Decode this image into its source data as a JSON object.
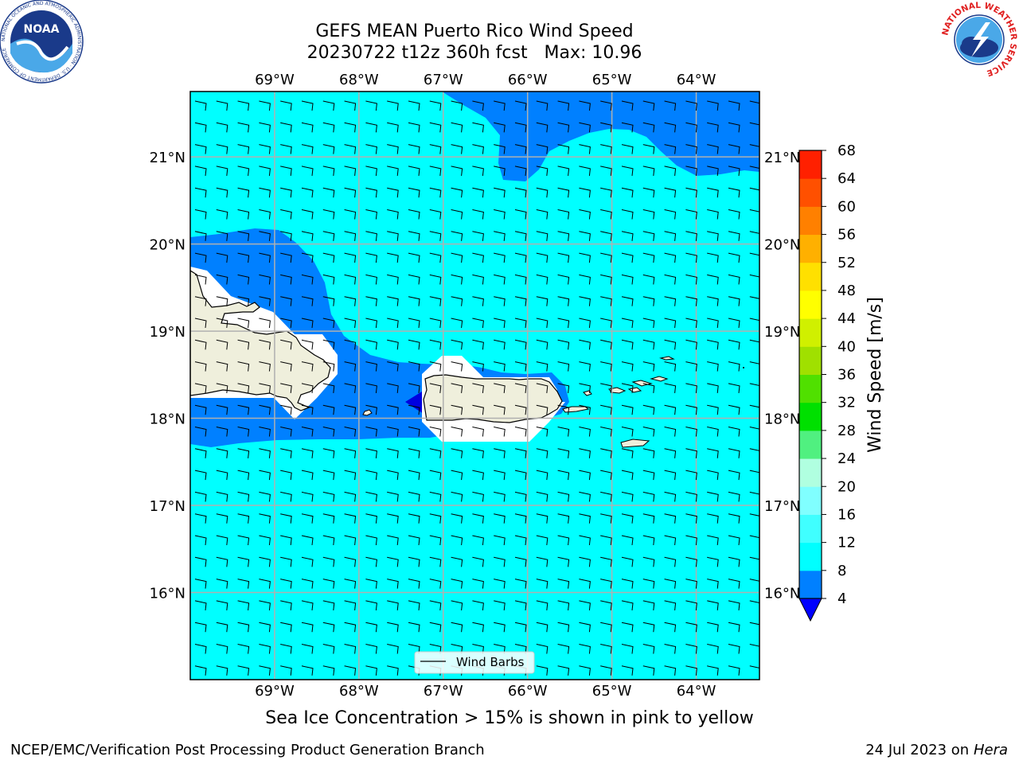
{
  "header": {
    "title_line1": "GEFS MEAN Puerto Rico Wind Speed",
    "title_line2": "20230722 t12z 360h fcst   Max: 10.96"
  },
  "logos": {
    "left": {
      "name": "noaa-logo",
      "text": "NOAA",
      "ring_text": "NATIONAL OCEANIC AND ATMOSPHERIC ADMINISTRATION · U.S. DEPARTMENT OF COMMERCE"
    },
    "right": {
      "name": "nws-logo",
      "ring_text": "NATIONAL WEATHER SERVICE"
    }
  },
  "map": {
    "lon_labels": [
      "69°W",
      "68°W",
      "67°W",
      "66°W",
      "65°W",
      "64°W"
    ],
    "lat_labels": [
      "21°N",
      "20°N",
      "19°N",
      "18°N",
      "17°N",
      "16°N"
    ],
    "lon_range": [
      -70.0,
      -63.25
    ],
    "lat_range": [
      15.0,
      21.75
    ],
    "legend": {
      "label": "Wind Barbs"
    },
    "colors": {
      "ocean_8_12": "#00ffff",
      "band_4_8": "#0080ff",
      "below_4": "#0000e0",
      "land": "#efefdc",
      "gridline": "#b0b0b0"
    }
  },
  "colorbar": {
    "label": "Wind Speed [m/s]",
    "ticks": [
      "4",
      "8",
      "12",
      "16",
      "20",
      "24",
      "28",
      "32",
      "36",
      "40",
      "44",
      "48",
      "52",
      "56",
      "60",
      "64",
      "68"
    ],
    "level_colors": [
      "#0080ff",
      "#00ffff",
      "#40ffff",
      "#80ffff",
      "#b0ffe0",
      "#50f080",
      "#00e000",
      "#50e000",
      "#a0e000",
      "#d0f000",
      "#ffff00",
      "#ffe000",
      "#ffb000",
      "#ff8000",
      "#ff5000",
      "#ff2000"
    ],
    "extend_color": "#0000ff"
  },
  "footer": {
    "subtitle": "Sea Ice Concentration > 15% is shown in pink to yellow",
    "left": "NCEP/EMC/Verification Post Processing Product Generation Branch",
    "date": "24 Jul 2023 on ",
    "machine": "Hera"
  }
}
